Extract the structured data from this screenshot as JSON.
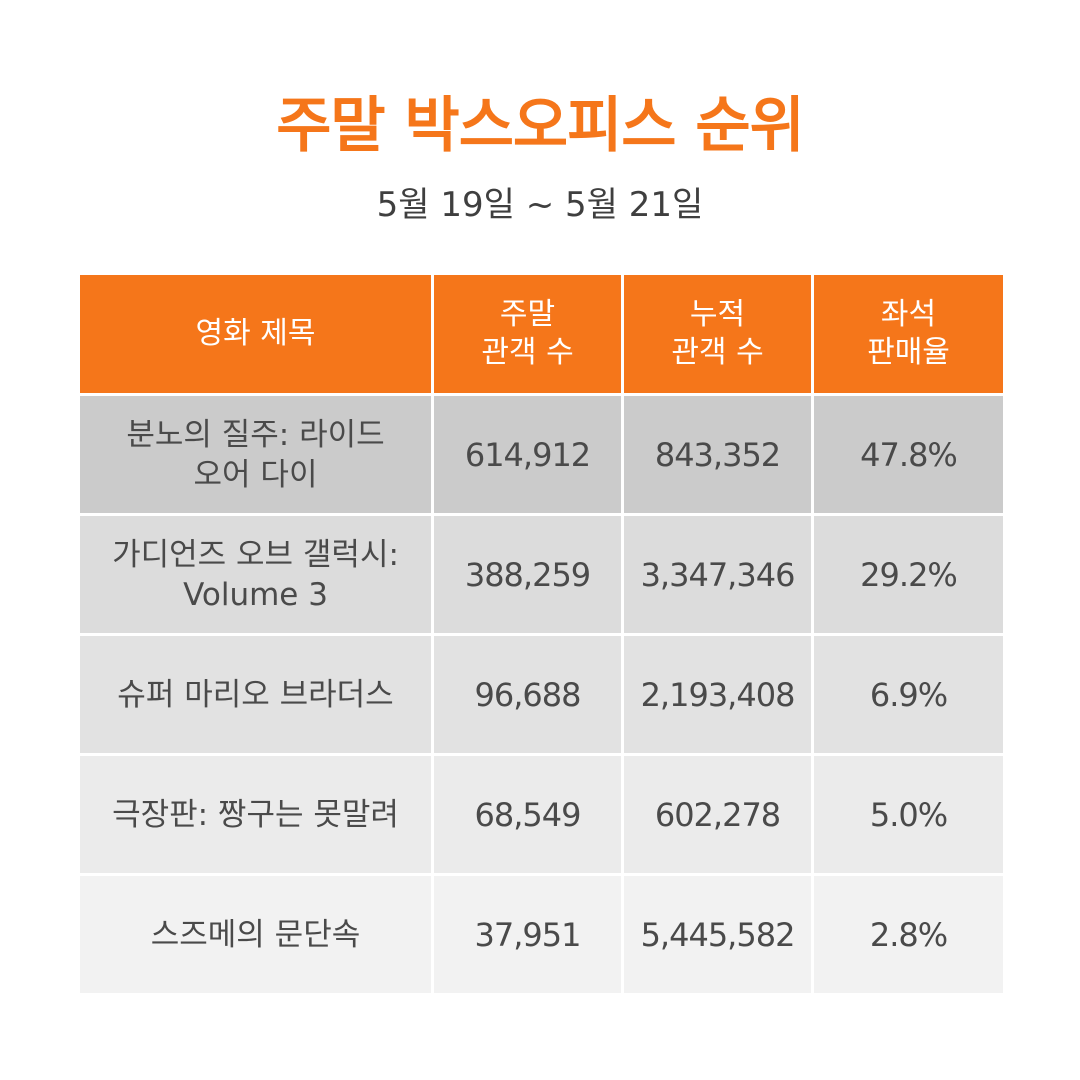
{
  "header": {
    "title": "주말 박스오피스 순위",
    "date_range": "5월 19일 ~ 5월 21일"
  },
  "colors": {
    "accent": "#f5761a",
    "header_text": "#ffffff",
    "body_text": "#4a4a4a"
  },
  "table": {
    "columns": [
      {
        "line1": "영화 제목",
        "line2": ""
      },
      {
        "line1": "주말",
        "line2": "관객 수"
      },
      {
        "line1": "누적",
        "line2": "관객 수"
      },
      {
        "line1": "좌석",
        "line2": "판매율"
      }
    ],
    "rows": [
      {
        "title_line1": "분노의 질주: 라이드",
        "title_line2": "오어 다이",
        "weekend": "614,912",
        "cumulative": "843,352",
        "seat_rate": "47.8%"
      },
      {
        "title_line1": "가디언즈 오브 갤럭시:",
        "title_line2": "Volume 3",
        "weekend": "388,259",
        "cumulative": "3,347,346",
        "seat_rate": "29.2%"
      },
      {
        "title_line1": "슈퍼 마리오 브라더스",
        "title_line2": "",
        "weekend": "96,688",
        "cumulative": "2,193,408",
        "seat_rate": "6.9%"
      },
      {
        "title_line1": "극장판: 짱구는 못말려",
        "title_line2": "",
        "weekend": "68,549",
        "cumulative": "602,278",
        "seat_rate": "5.0%"
      },
      {
        "title_line1": "스즈메의 문단속",
        "title_line2": "",
        "weekend": "37,951",
        "cumulative": "5,445,582",
        "seat_rate": "2.8%"
      }
    ]
  }
}
